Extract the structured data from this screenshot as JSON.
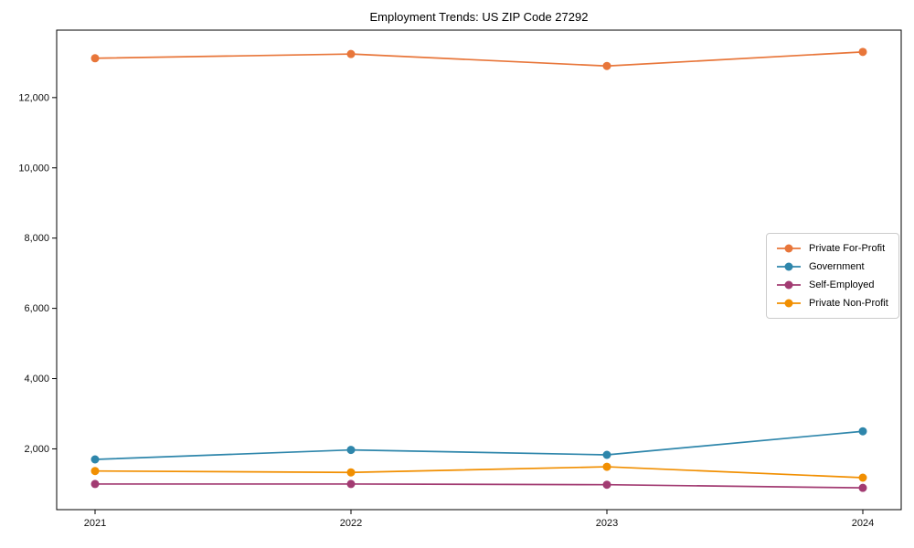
{
  "title": "Employment Trends: US ZIP Code 27292",
  "chart_data": {
    "type": "line",
    "x": [
      2021,
      2022,
      2023,
      2024
    ],
    "xtick_labels": [
      "2021",
      "2022",
      "2023",
      "2024"
    ],
    "yticks": [
      2000,
      4000,
      6000,
      8000,
      10000,
      12000
    ],
    "ytick_labels": [
      "2,000",
      "4,000",
      "6,000",
      "8,000",
      "10,000",
      "12,000"
    ],
    "ylim": [
      270,
      13920
    ],
    "grid": false,
    "marker": "circle",
    "legend_position": "center-right",
    "series": [
      {
        "name": "Private For-Profit",
        "color": "#e8763a",
        "values": [
          13120,
          13240,
          12900,
          13300
        ]
      },
      {
        "name": "Government",
        "color": "#2e86ab",
        "values": [
          1700,
          1970,
          1830,
          2500
        ]
      },
      {
        "name": "Self-Employed",
        "color": "#a23b72",
        "values": [
          1000,
          1000,
          980,
          890
        ]
      },
      {
        "name": "Private Non-Profit",
        "color": "#f18f01",
        "values": [
          1370,
          1330,
          1490,
          1180
        ]
      }
    ],
    "title": "Employment Trends: US ZIP Code 27292"
  },
  "colors": {
    "spine": "#000000",
    "tick_label": "#0f0f0f",
    "background": "#ffffff",
    "legend_border": "#cccccc"
  }
}
